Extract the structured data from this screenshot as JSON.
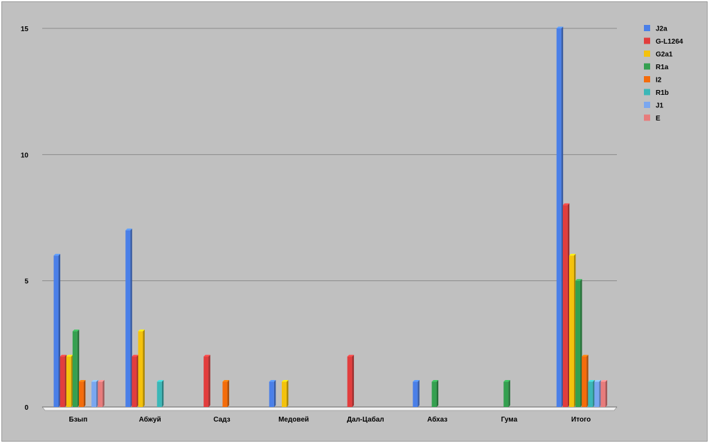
{
  "chart_data": {
    "type": "bar",
    "title": "",
    "xlabel": "",
    "ylabel": "",
    "ylim": [
      0,
      15
    ],
    "yticks": [
      0,
      5,
      10,
      15
    ],
    "grid": true,
    "legend_position": "right",
    "categories": [
      "Бзып",
      "Абжуй",
      "Садз",
      "Медовей",
      "Дал-Цабал",
      "Абхаз",
      "Гума",
      "Итого"
    ],
    "series": [
      {
        "name": "J2a",
        "color": "#4a7fe8",
        "values": [
          6,
          7,
          0,
          1,
          0,
          1,
          0,
          15
        ]
      },
      {
        "name": "G-L1264",
        "color": "#e23d3d",
        "values": [
          2,
          2,
          2,
          0,
          2,
          0,
          0,
          8
        ]
      },
      {
        "name": "G2a1",
        "color": "#f4c20d",
        "values": [
          2,
          3,
          0,
          1,
          0,
          0,
          0,
          6
        ]
      },
      {
        "name": "R1a",
        "color": "#35a050",
        "values": [
          3,
          0,
          0,
          0,
          0,
          1,
          1,
          5
        ]
      },
      {
        "name": "I2",
        "color": "#f46c0b",
        "values": [
          1,
          0,
          1,
          0,
          0,
          0,
          0,
          2
        ]
      },
      {
        "name": "R1b",
        "color": "#3bb7b7",
        "values": [
          0,
          1,
          0,
          0,
          0,
          0,
          0,
          1
        ]
      },
      {
        "name": "J1",
        "color": "#7aa7f0",
        "values": [
          1,
          0,
          0,
          0,
          0,
          0,
          0,
          1
        ]
      },
      {
        "name": "E",
        "color": "#e87c7c",
        "values": [
          1,
          0,
          0,
          0,
          0,
          0,
          0,
          1
        ]
      }
    ]
  }
}
